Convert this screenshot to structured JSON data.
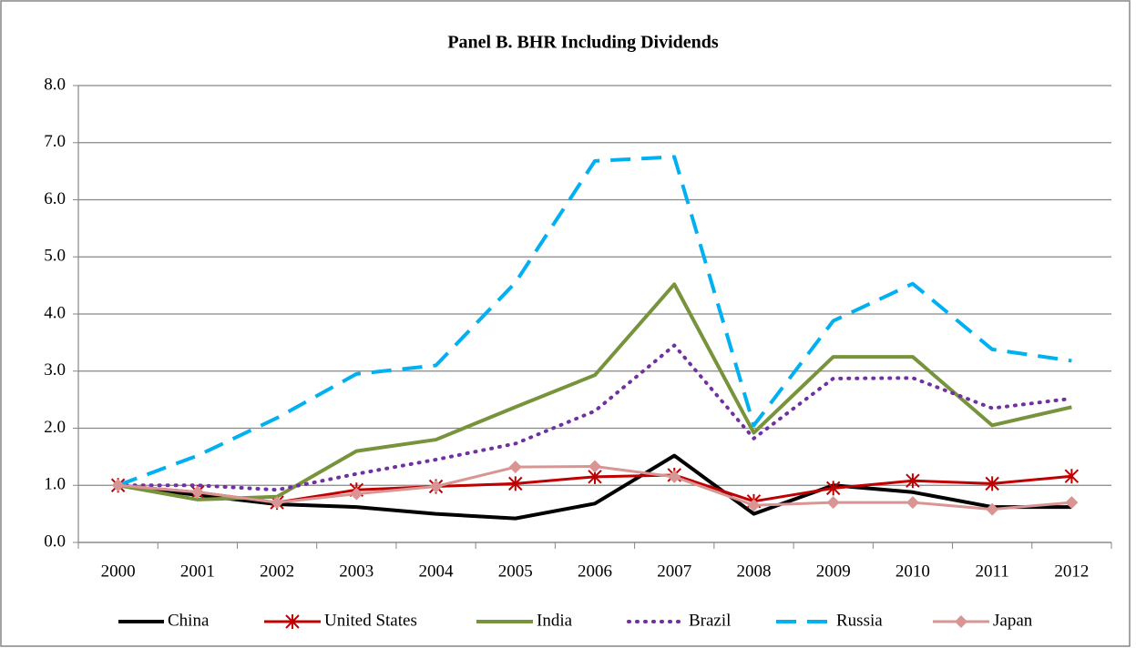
{
  "chart_data": {
    "type": "line",
    "title": "Panel B. BHR Including Dividends",
    "categories": [
      "2000",
      "2001",
      "2002",
      "2003",
      "2004",
      "2005",
      "2006",
      "2007",
      "2008",
      "2009",
      "2010",
      "2011",
      "2012"
    ],
    "ylim": [
      0,
      8
    ],
    "yticks": [
      {
        "value": 0,
        "label": "0.0"
      },
      {
        "value": 1,
        "label": "1.0"
      },
      {
        "value": 2,
        "label": "2.0"
      },
      {
        "value": 3,
        "label": "3.0"
      },
      {
        "value": 4,
        "label": "4.0"
      },
      {
        "value": 5,
        "label": "5.0"
      },
      {
        "value": 6,
        "label": "6.0"
      },
      {
        "value": 7,
        "label": "7.0"
      },
      {
        "value": 8,
        "label": "8.0"
      }
    ],
    "grid": true,
    "legend": "bottom",
    "series": [
      {
        "name": "China",
        "color": "#000000",
        "line_style": "solid",
        "values": [
          1.0,
          0.83,
          0.67,
          0.62,
          0.5,
          0.42,
          0.68,
          1.52,
          0.5,
          1.0,
          0.88,
          0.62,
          0.62
        ]
      },
      {
        "name": "United States",
        "color": "#c00000",
        "line_style": "solid",
        "marker": "asterisk",
        "values": [
          1.0,
          0.88,
          0.7,
          0.92,
          0.98,
          1.03,
          1.15,
          1.18,
          0.72,
          0.95,
          1.08,
          1.03,
          1.16
        ]
      },
      {
        "name": "India",
        "color": "#77933c",
        "line_style": "solid",
        "values": [
          1.0,
          0.75,
          0.8,
          1.6,
          1.8,
          2.37,
          2.93,
          4.52,
          1.92,
          3.25,
          3.25,
          2.05,
          2.37
        ]
      },
      {
        "name": "Brazil",
        "color": "#7030a0",
        "line_style": "dotted",
        "values": [
          1.0,
          1.0,
          0.92,
          1.2,
          1.45,
          1.73,
          2.3,
          3.45,
          1.82,
          2.87,
          2.88,
          2.35,
          2.52
        ]
      },
      {
        "name": "Russia",
        "color": "#00b0f0",
        "line_style": "dashed",
        "values": [
          1.0,
          1.52,
          2.18,
          2.95,
          3.1,
          4.55,
          6.68,
          6.75,
          2.05,
          3.88,
          4.53,
          3.38,
          3.18
        ]
      },
      {
        "name": "Japan",
        "color": "#d99594",
        "line_style": "solid",
        "marker": "diamond",
        "values": [
          1.0,
          0.88,
          0.7,
          0.85,
          0.98,
          1.32,
          1.33,
          1.15,
          0.65,
          0.7,
          0.7,
          0.58,
          0.7
        ]
      }
    ]
  }
}
